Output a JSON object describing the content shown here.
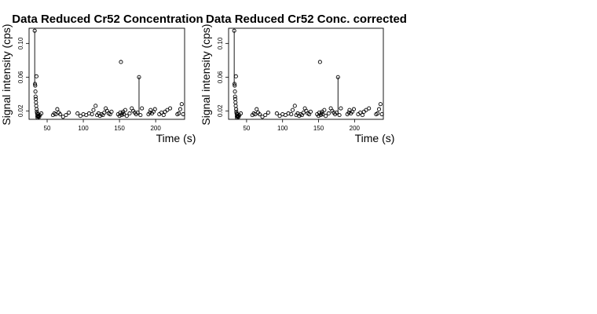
{
  "chart_data": [
    {
      "type": "scatter",
      "title": "Data Reduced Cr52 Concentration",
      "xlabel": "Time (s)",
      "ylabel": "Signal intensity (cps)",
      "xlim": [
        25,
        240
      ],
      "ylim": [
        0.01,
        0.118
      ],
      "xticks": [
        50,
        100,
        150,
        200
      ],
      "yticks": [
        0.02,
        0.06,
        0.1
      ],
      "ytick_labels": [
        "0.02",
        "0.06",
        "0.10"
      ],
      "grid": false,
      "legend": "none",
      "points": [
        [
          32.8,
          0.115
        ],
        [
          33.2,
          0.052
        ],
        [
          33.5,
          0.05
        ],
        [
          33.8,
          0.043
        ],
        [
          34.0,
          0.037
        ],
        [
          34.3,
          0.034
        ],
        [
          34.6,
          0.03
        ],
        [
          34.9,
          0.026
        ],
        [
          35.2,
          0.061
        ],
        [
          35.5,
          0.022
        ],
        [
          35.8,
          0.019
        ],
        [
          36.1,
          0.017
        ],
        [
          36.4,
          0.014
        ],
        [
          36.7,
          0.012
        ],
        [
          37.0,
          0.016
        ],
        [
          37.5,
          0.013
        ],
        [
          38.0,
          0.014
        ],
        [
          39.0,
          0.013
        ],
        [
          40.0,
          0.015
        ],
        [
          42.0,
          0.017
        ],
        [
          58.0,
          0.015
        ],
        [
          60.0,
          0.017
        ],
        [
          62.0,
          0.016
        ],
        [
          64.0,
          0.022
        ],
        [
          66.0,
          0.018
        ],
        [
          68.0,
          0.016
        ],
        [
          72.0,
          0.013
        ],
        [
          76.0,
          0.015
        ],
        [
          80.0,
          0.018
        ],
        [
          92.0,
          0.017
        ],
        [
          96.0,
          0.014
        ],
        [
          100.0,
          0.016
        ],
        [
          104.0,
          0.015
        ],
        [
          108.0,
          0.017
        ],
        [
          112.0,
          0.016
        ],
        [
          114.0,
          0.021
        ],
        [
          117.0,
          0.026
        ],
        [
          119.0,
          0.015
        ],
        [
          121.0,
          0.017
        ],
        [
          123.0,
          0.014
        ],
        [
          125.0,
          0.016
        ],
        [
          127.0,
          0.015
        ],
        [
          129.0,
          0.018
        ],
        [
          131.0,
          0.023
        ],
        [
          133.0,
          0.02
        ],
        [
          135.0,
          0.017
        ],
        [
          137.0,
          0.016
        ],
        [
          139.0,
          0.019
        ],
        [
          148.0,
          0.016
        ],
        [
          150.0,
          0.014
        ],
        [
          151.0,
          0.018
        ],
        [
          152.0,
          0.078
        ],
        [
          153.0,
          0.015
        ],
        [
          154.0,
          0.017
        ],
        [
          155.0,
          0.019
        ],
        [
          156.0,
          0.016
        ],
        [
          158.0,
          0.021
        ],
        [
          160.0,
          0.014
        ],
        [
          164.0,
          0.017
        ],
        [
          167.0,
          0.023
        ],
        [
          169.0,
          0.02
        ],
        [
          171.0,
          0.018
        ],
        [
          173.0,
          0.016
        ],
        [
          175.0,
          0.018
        ],
        [
          177.0,
          0.06
        ],
        [
          179.0,
          0.015
        ],
        [
          181.0,
          0.023
        ],
        [
          190.0,
          0.016
        ],
        [
          192.0,
          0.018
        ],
        [
          193.0,
          0.021
        ],
        [
          195.0,
          0.017
        ],
        [
          197.0,
          0.019
        ],
        [
          199.0,
          0.022
        ],
        [
          205.0,
          0.016
        ],
        [
          208.0,
          0.018
        ],
        [
          211.0,
          0.015
        ],
        [
          213.0,
          0.019
        ],
        [
          216.0,
          0.021
        ],
        [
          220.0,
          0.023
        ],
        [
          230.0,
          0.016
        ],
        [
          232.0,
          0.017
        ],
        [
          234.0,
          0.022
        ],
        [
          236.0,
          0.028
        ],
        [
          238.0,
          0.016
        ]
      ],
      "drop_lines": [
        {
          "x": 32.8,
          "y_from": 0.115,
          "y_to": 0.052
        },
        {
          "x": 177.0,
          "y_from": 0.06,
          "y_to": 0.015
        }
      ]
    },
    {
      "type": "scatter",
      "title": "Data Reduced Cr52 Conc. corrected",
      "xlabel": "Time (s)",
      "ylabel": "Signal intensity (cps)",
      "xlim": [
        25,
        240
      ],
      "ylim": [
        0.01,
        0.118
      ],
      "xticks": [
        50,
        100,
        150,
        200
      ],
      "yticks": [
        0.02,
        0.06,
        0.1
      ],
      "ytick_labels": [
        "0.02",
        "0.06",
        "0.10"
      ],
      "grid": false,
      "legend": "none",
      "points": [
        [
          32.8,
          0.115
        ],
        [
          33.2,
          0.052
        ],
        [
          33.5,
          0.05
        ],
        [
          33.8,
          0.043
        ],
        [
          34.0,
          0.037
        ],
        [
          34.3,
          0.034
        ],
        [
          34.6,
          0.03
        ],
        [
          34.9,
          0.026
        ],
        [
          35.2,
          0.061
        ],
        [
          35.5,
          0.022
        ],
        [
          35.8,
          0.019
        ],
        [
          36.1,
          0.017
        ],
        [
          36.4,
          0.014
        ],
        [
          36.7,
          0.012
        ],
        [
          37.0,
          0.016
        ],
        [
          37.5,
          0.013
        ],
        [
          38.0,
          0.014
        ],
        [
          39.0,
          0.013
        ],
        [
          40.0,
          0.015
        ],
        [
          42.0,
          0.017
        ],
        [
          58.0,
          0.015
        ],
        [
          60.0,
          0.017
        ],
        [
          62.0,
          0.016
        ],
        [
          64.0,
          0.022
        ],
        [
          66.0,
          0.018
        ],
        [
          68.0,
          0.016
        ],
        [
          72.0,
          0.013
        ],
        [
          76.0,
          0.015
        ],
        [
          80.0,
          0.018
        ],
        [
          92.0,
          0.017
        ],
        [
          96.0,
          0.014
        ],
        [
          100.0,
          0.016
        ],
        [
          104.0,
          0.015
        ],
        [
          108.0,
          0.017
        ],
        [
          112.0,
          0.016
        ],
        [
          114.0,
          0.021
        ],
        [
          117.0,
          0.026
        ],
        [
          119.0,
          0.015
        ],
        [
          121.0,
          0.017
        ],
        [
          123.0,
          0.014
        ],
        [
          125.0,
          0.016
        ],
        [
          127.0,
          0.015
        ],
        [
          129.0,
          0.018
        ],
        [
          131.0,
          0.023
        ],
        [
          133.0,
          0.02
        ],
        [
          135.0,
          0.017
        ],
        [
          137.0,
          0.016
        ],
        [
          139.0,
          0.019
        ],
        [
          148.0,
          0.016
        ],
        [
          150.0,
          0.014
        ],
        [
          151.0,
          0.018
        ],
        [
          152.0,
          0.078
        ],
        [
          153.0,
          0.015
        ],
        [
          154.0,
          0.017
        ],
        [
          155.0,
          0.019
        ],
        [
          156.0,
          0.016
        ],
        [
          158.0,
          0.021
        ],
        [
          160.0,
          0.014
        ],
        [
          164.0,
          0.017
        ],
        [
          167.0,
          0.023
        ],
        [
          169.0,
          0.02
        ],
        [
          171.0,
          0.018
        ],
        [
          173.0,
          0.016
        ],
        [
          175.0,
          0.018
        ],
        [
          177.0,
          0.06
        ],
        [
          179.0,
          0.015
        ],
        [
          181.0,
          0.023
        ],
        [
          190.0,
          0.016
        ],
        [
          192.0,
          0.018
        ],
        [
          193.0,
          0.021
        ],
        [
          195.0,
          0.017
        ],
        [
          197.0,
          0.019
        ],
        [
          199.0,
          0.022
        ],
        [
          205.0,
          0.016
        ],
        [
          208.0,
          0.018
        ],
        [
          211.0,
          0.015
        ],
        [
          213.0,
          0.019
        ],
        [
          216.0,
          0.021
        ],
        [
          220.0,
          0.023
        ],
        [
          230.0,
          0.016
        ],
        [
          232.0,
          0.017
        ],
        [
          234.0,
          0.022
        ],
        [
          236.0,
          0.028
        ],
        [
          238.0,
          0.016
        ]
      ],
      "drop_lines": [
        {
          "x": 32.8,
          "y_from": 0.115,
          "y_to": 0.052
        },
        {
          "x": 177.0,
          "y_from": 0.06,
          "y_to": 0.015
        }
      ]
    }
  ]
}
